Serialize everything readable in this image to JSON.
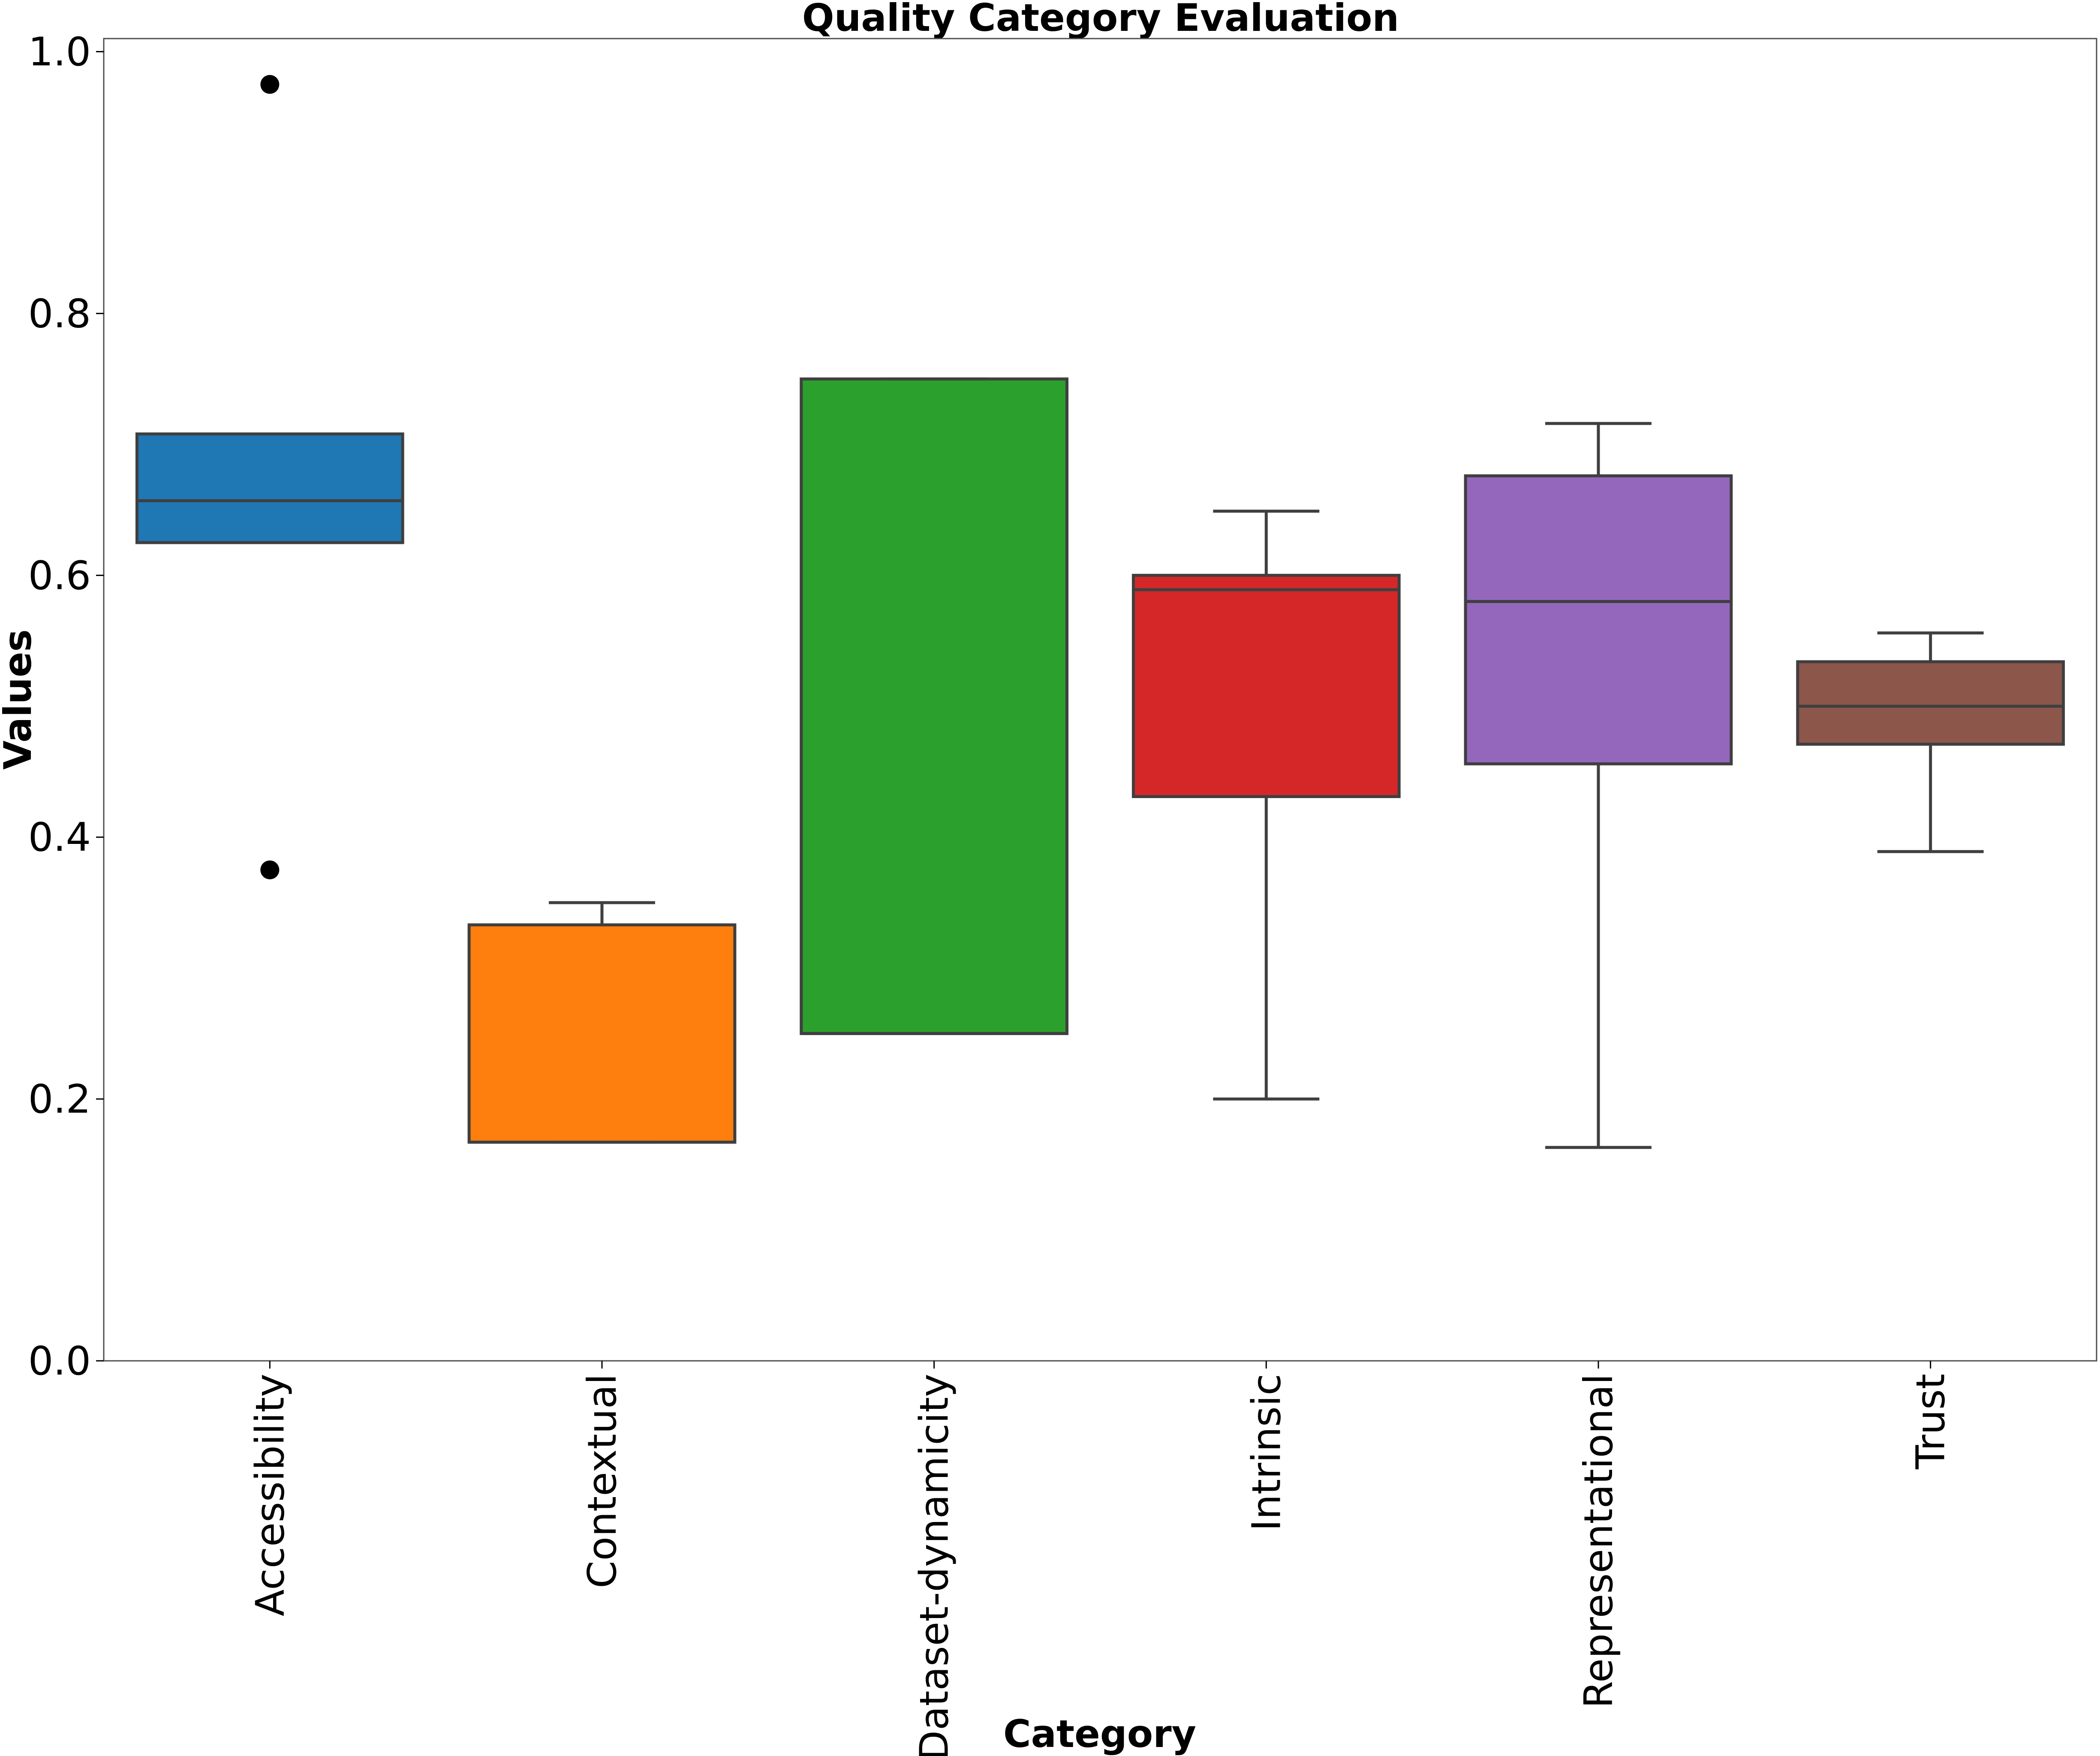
{
  "chart_data": {
    "type": "box",
    "title": "Quality Category Evaluation",
    "xlabel": "Category",
    "ylabel": "Values",
    "ylim": [
      0,
      1.01
    ],
    "yticks": [
      "0.0",
      "0.2",
      "0.4",
      "0.6",
      "0.8",
      "1.0"
    ],
    "ytick_values": [
      0.0,
      0.2,
      0.4,
      0.6,
      0.8,
      1.0
    ],
    "grid": false,
    "legend": "none",
    "categories": [
      "Accessibility",
      "Contextual",
      "Dataset-dynamicity",
      "Intrinsic",
      "Representational",
      "Trust"
    ],
    "boxes": [
      {
        "category": "Accessibility",
        "whisker_low": 0.625,
        "q1": 0.625,
        "median": 0.657,
        "q3": 0.708,
        "whisker_high": 0.708,
        "outliers": [
          0.975,
          0.375
        ],
        "color": "#1f77b4"
      },
      {
        "category": "Contextual",
        "whisker_low": 0.167,
        "q1": 0.167,
        "median": 0.167,
        "q3": 0.333,
        "whisker_high": 0.35,
        "outliers": [],
        "color": "#ff7f0e"
      },
      {
        "category": "Dataset-dynamicity",
        "whisker_low": 0.25,
        "q1": 0.25,
        "median": 0.25,
        "q3": 0.75,
        "whisker_high": 0.75,
        "outliers": [],
        "color": "#2ca02c"
      },
      {
        "category": "Intrinsic",
        "whisker_low": 0.2,
        "q1": 0.431,
        "median": 0.589,
        "q3": 0.6,
        "whisker_high": 0.649,
        "outliers": [],
        "color": "#d62728"
      },
      {
        "category": "Representational",
        "whisker_low": 0.163,
        "q1": 0.456,
        "median": 0.58,
        "q3": 0.676,
        "whisker_high": 0.716,
        "outliers": [],
        "color": "#9467bd"
      },
      {
        "category": "Trust",
        "whisker_low": 0.389,
        "q1": 0.471,
        "median": 0.5,
        "q3": 0.534,
        "whisker_high": 0.556,
        "outliers": [],
        "color": "#8c564b"
      }
    ],
    "line_color": "#3f3f3f",
    "outlier_color": "#000000"
  }
}
